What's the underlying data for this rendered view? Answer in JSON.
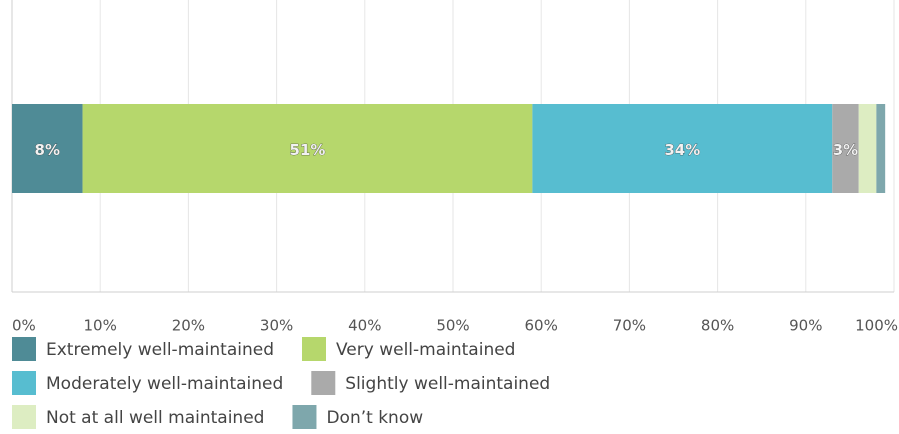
{
  "chart_data": {
    "type": "bar",
    "orientation": "horizontal",
    "stacked": true,
    "series": [
      {
        "name": "Extremely well-maintained",
        "color": "#4f8b96",
        "values": [
          8
        ],
        "value_labels": [
          "8%"
        ]
      },
      {
        "name": "Very well-maintained",
        "color": "#b6d76c",
        "values": [
          51
        ],
        "value_labels": [
          "51%"
        ]
      },
      {
        "name": "Moderately well-maintained",
        "color": "#57bdd0",
        "values": [
          34
        ],
        "value_labels": [
          "34%"
        ]
      },
      {
        "name": "Slightly well-maintained",
        "color": "#aaaaaa",
        "values": [
          3
        ],
        "value_labels": [
          "3%"
        ]
      },
      {
        "name": "Not at all well maintained",
        "color": "#ddedc2",
        "values": [
          2
        ],
        "value_labels": [
          null
        ]
      },
      {
        "name": "Don’t know",
        "color": "#7ea7ac",
        "values": [
          1
        ],
        "value_labels": [
          null
        ]
      }
    ],
    "xlim": [
      0,
      100
    ],
    "xticks": [
      {
        "value": 0,
        "label": "0%"
      },
      {
        "value": 10,
        "label": "10%"
      },
      {
        "value": 20,
        "label": "20%"
      },
      {
        "value": 30,
        "label": "30%"
      },
      {
        "value": 40,
        "label": "40%"
      },
      {
        "value": 50,
        "label": "50%"
      },
      {
        "value": 60,
        "label": "60%"
      },
      {
        "value": 70,
        "label": "70%"
      },
      {
        "value": 80,
        "label": "80%"
      },
      {
        "value": 90,
        "label": "90%"
      },
      {
        "value": 100,
        "label": "100%"
      }
    ],
    "grid": true,
    "legend": "bottom"
  }
}
